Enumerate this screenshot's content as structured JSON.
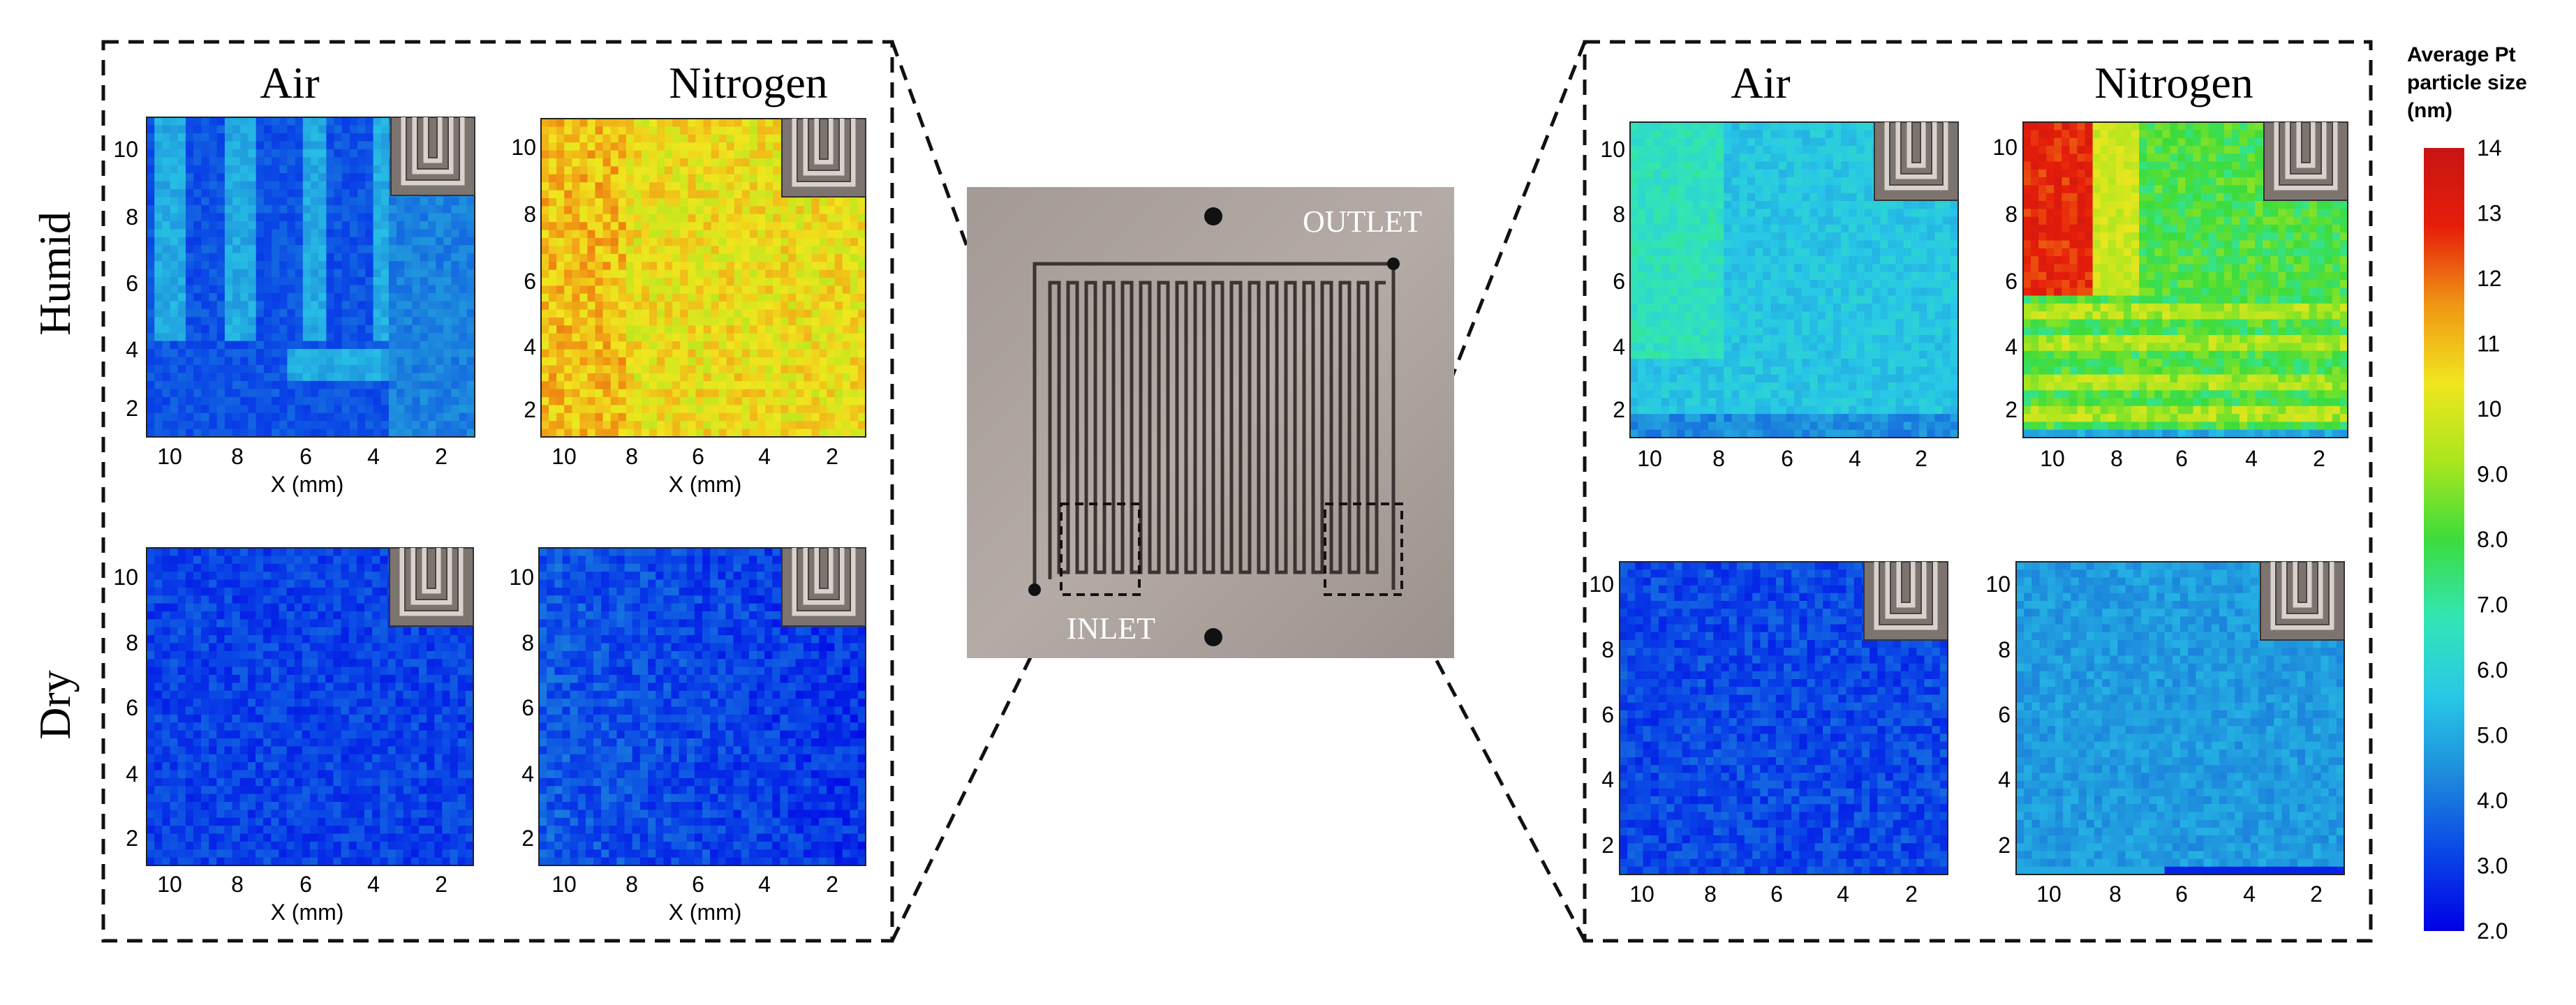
{
  "figure": {
    "column_labels": [
      "Air",
      "Nitrogen"
    ],
    "row_labels": [
      "Humid",
      "Dry"
    ],
    "x_axis_label": "X (mm)",
    "tick_labels": [
      "10",
      "8",
      "6",
      "4",
      "2"
    ]
  },
  "photo": {
    "outlet_label": "OUTLET",
    "inlet_label": "INLET"
  },
  "colorbar": {
    "title_lines": [
      "Average Pt",
      "particle size",
      "(nm)"
    ],
    "ticks": [
      "14",
      "13",
      "12",
      "11",
      "10",
      "9.0",
      "8.0",
      "7.0",
      "6.0",
      "5.0",
      "4.0",
      "3.0",
      "2.0"
    ],
    "min": 2.0,
    "max": 14.0,
    "colors": [
      "#0000e6",
      "#0a46e6",
      "#1e8cdc",
      "#28c8e6",
      "#32e6b4",
      "#3cdc3c",
      "#aae61e",
      "#f0e61e",
      "#f09614",
      "#e61e0a",
      "#c81414"
    ]
  },
  "panels": [
    {
      "name": "left-humid-air",
      "side": "left",
      "row": "Humid",
      "column": "Air",
      "approx_mean_nm": 4.3
    },
    {
      "name": "left-humid-nitrogen",
      "side": "left",
      "row": "Humid",
      "column": "Nitrogen",
      "approx_mean_nm": 10.5
    },
    {
      "name": "left-dry-air",
      "side": "left",
      "row": "Dry",
      "column": "Air",
      "approx_mean_nm": 3.3
    },
    {
      "name": "left-dry-nitrogen",
      "side": "left",
      "row": "Dry",
      "column": "Nitrogen",
      "approx_mean_nm": 3.4
    },
    {
      "name": "right-humid-air",
      "side": "right",
      "row": "Humid",
      "column": "Air",
      "approx_mean_nm": 5.8
    },
    {
      "name": "right-humid-nitrogen",
      "side": "right",
      "row": "Humid",
      "column": "Nitrogen",
      "approx_mean_nm": 9.0
    },
    {
      "name": "right-dry-air",
      "side": "right",
      "row": "Dry",
      "column": "Air",
      "approx_mean_nm": 3.3
    },
    {
      "name": "right-dry-nitrogen",
      "side": "right",
      "row": "Dry",
      "column": "Nitrogen",
      "approx_mean_nm": 4.6
    }
  ]
}
